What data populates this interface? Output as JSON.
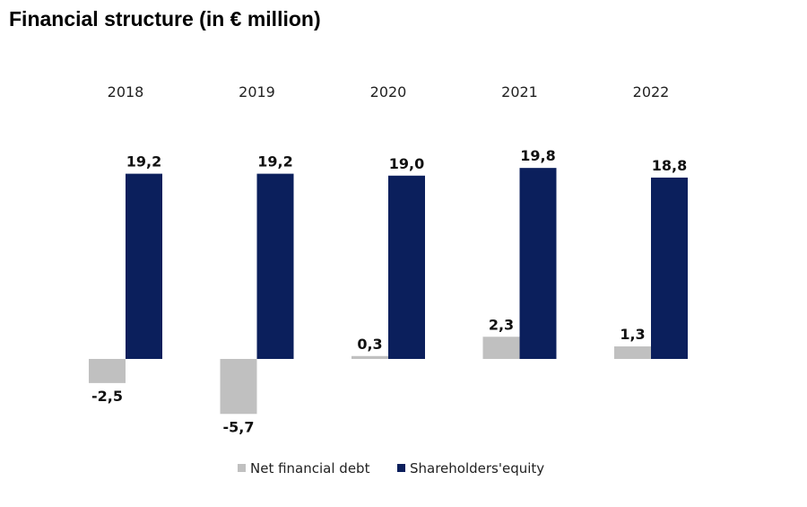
{
  "chart_data": {
    "type": "bar",
    "title": "Financial structure (in € million)",
    "categories": [
      "2018",
      "2019",
      "2020",
      "2021",
      "2022"
    ],
    "series": [
      {
        "name": "Net financial debt",
        "values": [
          -2.5,
          -5.7,
          0.3,
          2.3,
          1.3
        ],
        "labels": [
          "-2,5",
          "-5,7",
          "0,3",
          "2,3",
          "1,3"
        ],
        "color": "#c0c0c0"
      },
      {
        "name": "Shareholders'equity",
        "values": [
          19.2,
          19.2,
          19.0,
          19.8,
          18.8
        ],
        "labels": [
          "19,2",
          "19,2",
          "19,0",
          "19,8",
          "18,8"
        ],
        "color": "#0b1f5c"
      }
    ],
    "legend": "bottom",
    "grid": false,
    "category_labels_position": "top"
  }
}
